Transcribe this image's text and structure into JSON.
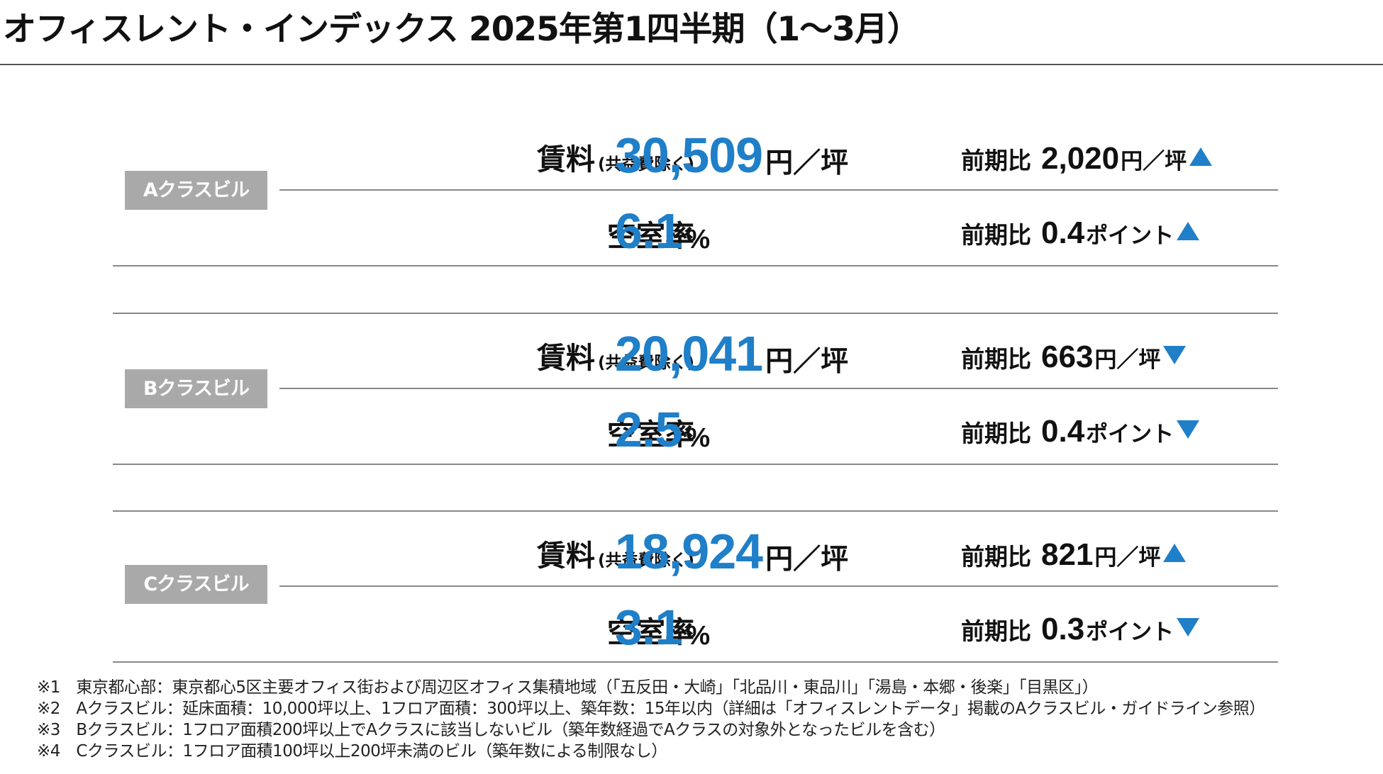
{
  "title": "オフィスレント・インデックス 2025年第1四半期（1〜3月）",
  "labels": {
    "rent_main": "賃料",
    "rent_sub": "(共益費除く)",
    "vacancy": "空室率",
    "change_prefix": "前期比"
  },
  "sections": [
    {
      "badge": "Aクラスビル",
      "rent": {
        "value": "30,509",
        "unit": "円／坪",
        "change": "2,020",
        "change_unit": "円／坪",
        "direction": "up"
      },
      "vacancy": {
        "value": "6.1",
        "unit": "%",
        "change": "0.4",
        "change_unit": "ポイント",
        "direction": "up"
      }
    },
    {
      "badge": "Bクラスビル",
      "rent": {
        "value": "20,041",
        "unit": "円／坪",
        "change": "663",
        "change_unit": "円／坪",
        "direction": "down"
      },
      "vacancy": {
        "value": "2.5",
        "unit": "%",
        "change": "0.4",
        "change_unit": "ポイント",
        "direction": "down"
      }
    },
    {
      "badge": "Cクラスビル",
      "rent": {
        "value": "18,924",
        "unit": "円／坪",
        "change": "821",
        "change_unit": "円／坪",
        "direction": "up"
      },
      "vacancy": {
        "value": "3.1",
        "unit": "%",
        "change": "0.3",
        "change_unit": "ポイント",
        "direction": "down"
      }
    }
  ],
  "notes": [
    "※1　東京都心部：東京都心5区主要オフィス街および周辺区オフィス集積地域（「五反田・大崎」「北品川・東品川」「湯島・本郷・後楽」「目黒区」）",
    "※2　Aクラスビル：延床面積：10,000坪以上、1フロア面積：300坪以上、築年数：15年以内（詳細は「オフィスレントデータ」掲載のAクラスビル・ガイドライン参照）",
    "※3　Bクラスビル：1フロア面積200坪以上でAクラスに該当しないビル（築年数経過でAクラスの対象外となったビルを含む）",
    "※4　Cクラスビル：1フロア面積100坪以上200坪未満のビル（築年数による制限なし）"
  ],
  "colors": {
    "accent": "#1f7fc8",
    "badge": "#a9a9a9"
  }
}
